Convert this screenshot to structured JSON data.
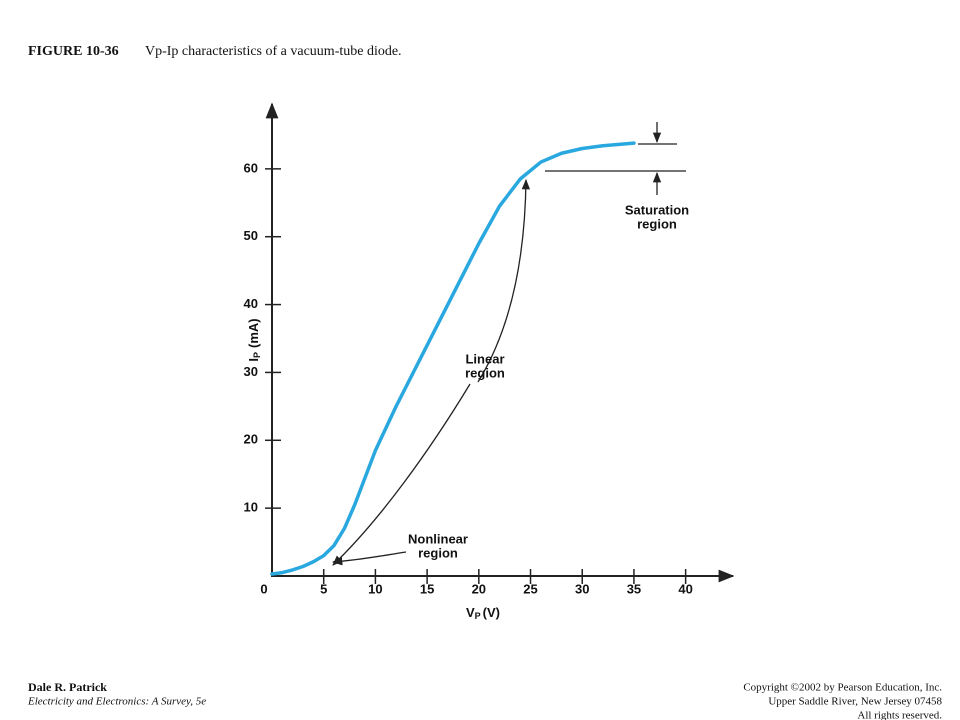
{
  "header": {
    "figure": "FIGURE 10-36",
    "caption": "Vp-Ip characteristics of a vacuum-tube diode."
  },
  "chart_data": {
    "type": "line",
    "x": [
      0,
      1,
      2,
      3,
      4,
      5,
      6,
      7,
      8,
      10,
      12,
      14,
      16,
      18,
      20,
      22,
      24,
      26,
      28,
      30,
      32,
      35
    ],
    "series": [
      {
        "color": "#29a8e0",
        "values": [
          0.3,
          0.5,
          0.9,
          1.4,
          2.1,
          3,
          4.5,
          7,
          10.5,
          18.5,
          25,
          31,
          37,
          43,
          49,
          54.5,
          58.5,
          61,
          62.3,
          63,
          63.4,
          63.8
        ]
      }
    ],
    "xlim": [
      0,
      44
    ],
    "ylim": [
      0,
      70
    ],
    "xticks": [
      0,
      5,
      10,
      15,
      20,
      25,
      30,
      35,
      40
    ],
    "yticks": [
      10,
      20,
      30,
      40,
      50,
      60
    ],
    "y_label": {
      "main": "I",
      "sub": "P",
      "unit": "(mA)"
    },
    "x_label": {
      "main": "V",
      "sub": "P",
      "unit": "(V)"
    },
    "annotations": [
      {
        "lines": [
          "Saturation",
          "region"
        ]
      },
      {
        "lines": [
          "Linear",
          "region"
        ]
      },
      {
        "lines": [
          "Nonlinear",
          "region"
        ]
      }
    ]
  },
  "footer": {
    "author": "Dale R. Patrick",
    "book": "Electricity and Electronics: A Survey, 5e",
    "copyright": [
      "Copyright ©2002 by Pearson Education, Inc.",
      "Upper Saddle River, New Jersey 07458",
      "All rights reserved."
    ]
  }
}
